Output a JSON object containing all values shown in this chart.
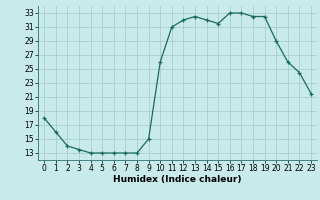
{
  "x": [
    0,
    1,
    2,
    3,
    4,
    5,
    6,
    7,
    8,
    9,
    10,
    11,
    12,
    13,
    14,
    15,
    16,
    17,
    18,
    19,
    20,
    21,
    22,
    23
  ],
  "y": [
    18,
    16,
    14,
    13.5,
    13,
    13,
    13,
    13,
    13,
    15,
    26,
    31,
    32,
    32.5,
    32,
    31.5,
    33,
    33,
    32.5,
    32.5,
    29,
    26,
    24.5,
    21.5
  ],
  "line_color": "#1a6b5a",
  "marker": "+",
  "bg_color": "#c8eaea",
  "grid_color": "#a0c8c8",
  "xlabel": "Humidex (Indice chaleur)",
  "xlim": [
    -0.5,
    23.5
  ],
  "ylim": [
    12,
    34
  ],
  "yticks": [
    13,
    15,
    17,
    19,
    21,
    23,
    25,
    27,
    29,
    31,
    33
  ],
  "xticks": [
    0,
    1,
    2,
    3,
    4,
    5,
    6,
    7,
    8,
    9,
    10,
    11,
    12,
    13,
    14,
    15,
    16,
    17,
    18,
    19,
    20,
    21,
    22,
    23
  ],
  "label_fontsize": 6.5,
  "tick_fontsize": 5.5
}
